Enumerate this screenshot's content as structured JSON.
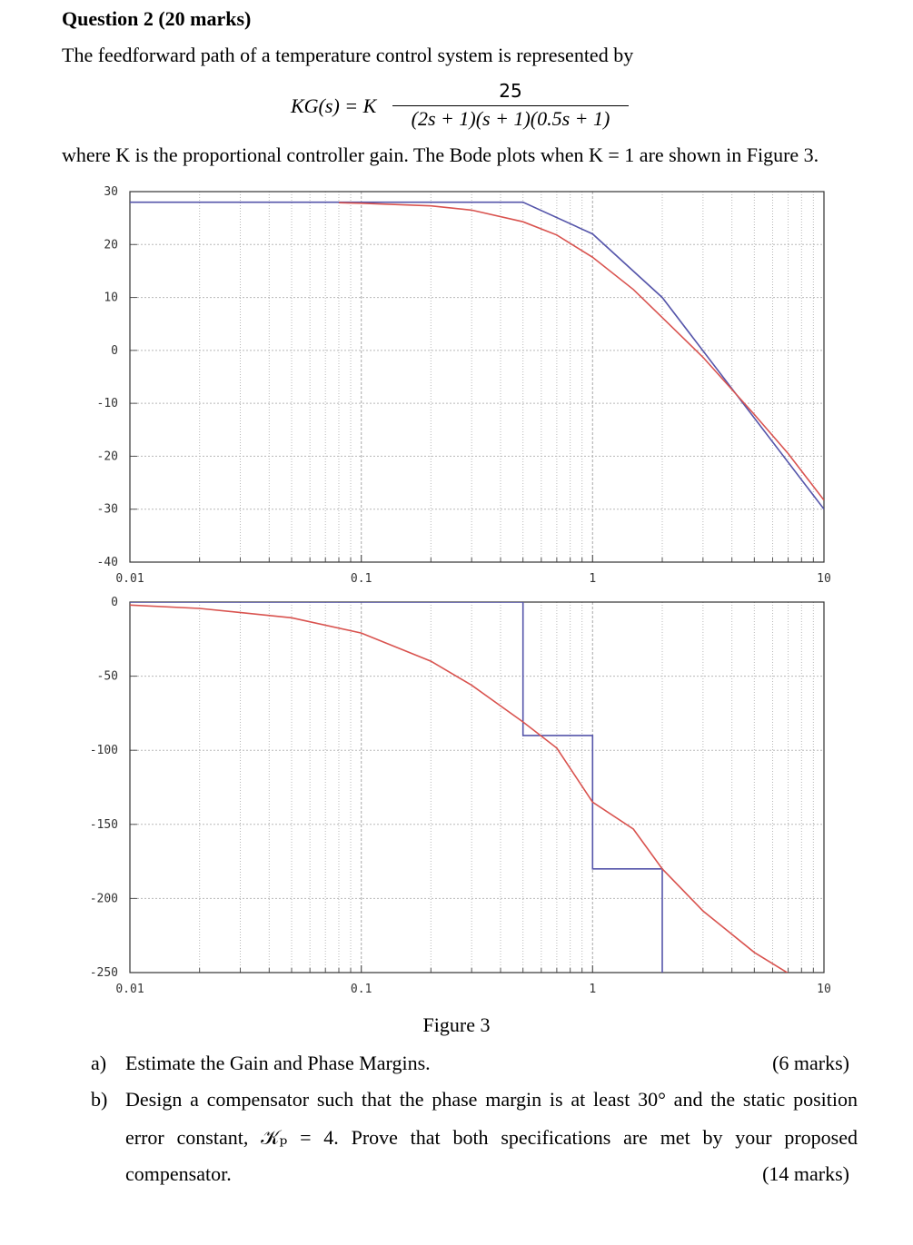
{
  "question": {
    "title": "Question 2 (20 marks)",
    "intro": "The feedforward path of a temperature control system is represented by",
    "equation": {
      "lhs": "KG(s) = K",
      "numerator": "25",
      "denominator": "(2s + 1)(s + 1)(0.5s + 1)"
    },
    "where_text": "where K is the proportional controller gain. The Bode plots when K = 1 are shown in Figure 3."
  },
  "figure": {
    "caption": "Figure 3",
    "colors": {
      "exact": "#d9534f",
      "asymptote": "#5555aa",
      "grid": "#b8b8b8"
    }
  },
  "chart_data": [
    {
      "type": "line",
      "title": "",
      "xlabel": "",
      "ylabel": "",
      "x_scale": "log",
      "xlim": [
        0.01,
        10
      ],
      "ylim": [
        -40,
        30
      ],
      "x_ticks": [
        "0.01",
        "0.1",
        "1",
        "10"
      ],
      "y_ticks": [
        "30",
        "20",
        "10",
        "0",
        "-10",
        "-20",
        "-30",
        "-40"
      ],
      "grid": true,
      "series": [
        {
          "color": "#5555aa",
          "x": [
            0.01,
            0.5,
            1,
            2,
            10
          ],
          "y": [
            28,
            28,
            22,
            10,
            -30
          ]
        },
        {
          "color": "#d9534f",
          "x": [
            0.08,
            0.1,
            0.2,
            0.3,
            0.5,
            0.7,
            1,
            1.5,
            2,
            3,
            5,
            7,
            10
          ],
          "y": [
            27.9,
            27.8,
            27.3,
            26.5,
            24.3,
            21.8,
            17.6,
            11.5,
            6.2,
            -1.3,
            -12.1,
            -19.5,
            -28.3
          ]
        }
      ]
    },
    {
      "type": "line",
      "title": "",
      "xlabel": "",
      "ylabel": "",
      "x_scale": "log",
      "xlim": [
        0.01,
        10
      ],
      "ylim": [
        -250,
        0
      ],
      "x_ticks": [
        "0.01",
        "0.1",
        "1",
        "10"
      ],
      "y_ticks": [
        "0",
        "-50",
        "-100",
        "-150",
        "-200",
        "-250"
      ],
      "grid": true,
      "series": [
        {
          "color": "#5555aa",
          "x": [
            0.01,
            0.5,
            0.5,
            1,
            1,
            2,
            2
          ],
          "y": [
            0,
            0,
            -90,
            -90,
            -180,
            -180,
            -270
          ]
        },
        {
          "color": "#d9534f",
          "x": [
            0.01,
            0.02,
            0.05,
            0.1,
            0.2,
            0.3,
            0.5,
            0.7,
            1,
            1.5,
            2,
            3,
            5,
            7,
            10
          ],
          "y": [
            -2,
            -4.3,
            -10.6,
            -20.9,
            -39.9,
            -56.1,
            -80.9,
            -98.5,
            -135,
            -153.2,
            -180,
            -208.4,
            -236.4,
            -250.4,
            -263.5
          ]
        }
      ]
    }
  ],
  "parts": [
    {
      "label": "a)",
      "lines": [
        "Estimate the Gain and Phase Margins."
      ],
      "marks": "(6 marks)"
    },
    {
      "label": "b)",
      "lines": [
        "Design a compensator such that the phase margin is at least 30° and the static position",
        "error constant, 𝒦ₚ = 4. Prove that both specifications are met by your proposed",
        "compensator."
      ],
      "marks": "(14 marks)"
    }
  ]
}
